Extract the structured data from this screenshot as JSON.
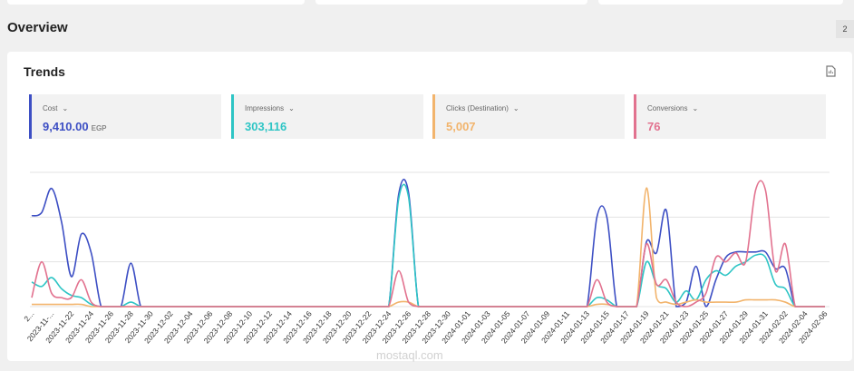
{
  "header": {
    "title": "Overview",
    "button": "2"
  },
  "panel": {
    "title": "Trends",
    "cards": [
      {
        "label": "Cost",
        "value": "9,410.00",
        "unit": "EGP",
        "color": "#3d4fc4"
      },
      {
        "label": "Impressions",
        "value": "303,116",
        "color": "#2ec5c5"
      },
      {
        "label": "Clicks (Destination)",
        "value": "5,007",
        "color": "#f2b46c"
      },
      {
        "label": "Conversions",
        "value": "76",
        "color": "#e2728f"
      }
    ]
  },
  "watermark": "mostaql.com",
  "chart_data": {
    "type": "line",
    "categories": [
      "2...",
      null,
      "2023-11-...",
      null,
      "2023-11-22",
      null,
      "2023-11-24",
      null,
      "2023-11-26",
      null,
      "2023-11-28",
      null,
      "2023-11-30",
      null,
      "2023-12-02",
      null,
      "2023-12-04",
      null,
      "2023-12-06",
      null,
      "2023-12-08",
      null,
      "2023-12-10",
      null,
      "2023-12-12",
      null,
      "2023-12-14",
      null,
      "2023-12-16",
      null,
      "2023-12-18",
      null,
      "2023-12-20",
      null,
      "2023-12-22",
      null,
      "2023-12-24",
      null,
      "2023-12-26",
      null,
      "2023-12-28",
      null,
      "2023-12-30",
      null,
      "2024-01-01",
      null,
      "2024-01-03",
      null,
      "2024-01-05",
      null,
      "2024-01-07",
      null,
      "2024-01-09",
      null,
      "2024-01-11",
      null,
      "2024-01-13",
      null,
      "2024-01-15",
      null,
      "2024-01-17",
      null,
      "2024-01-19",
      null,
      "2024-01-21",
      null,
      "2024-01-23",
      null,
      "2024-01-25",
      null,
      "2024-01-27",
      null,
      "2024-01-29",
      null,
      "2024-01-31",
      null,
      "2024-02-02",
      null,
      "2024-02-04",
      null,
      "2024-02-06"
    ],
    "series": [
      {
        "name": "Cost",
        "color": "#3d4fc4",
        "values": [
          2.03,
          2.1,
          2.64,
          1.9,
          0.67,
          1.62,
          1.2,
          0,
          0,
          0,
          0.97,
          0,
          0,
          0,
          0,
          0,
          0,
          0,
          0,
          0,
          0,
          0,
          0,
          0,
          0,
          0,
          0,
          0,
          0,
          0,
          0,
          0,
          0,
          0,
          0,
          0,
          0,
          2.5,
          2.55,
          0,
          0,
          0,
          0,
          0,
          0,
          0,
          0,
          0,
          0,
          0,
          0,
          0,
          0,
          0,
          0,
          0,
          0,
          2.0,
          2.0,
          0,
          0,
          0,
          1.45,
          1.2,
          2.15,
          0,
          0.1,
          0.9,
          0,
          0.6,
          1.1,
          1.22,
          1.22,
          1.22,
          1.22,
          0.85,
          0.85,
          0,
          0,
          0,
          0
        ]
      },
      {
        "name": "Impressions",
        "color": "#2ec5c5",
        "values": [
          0.55,
          0.45,
          0.65,
          0.4,
          0.25,
          0.2,
          0.05,
          0,
          0,
          0,
          0.1,
          0,
          0,
          0,
          0,
          0,
          0,
          0,
          0,
          0,
          0,
          0,
          0,
          0,
          0,
          0,
          0,
          0,
          0,
          0,
          0,
          0,
          0,
          0,
          0,
          0,
          0,
          2.4,
          2.45,
          0,
          0,
          0,
          0,
          0,
          0,
          0,
          0,
          0,
          0,
          0,
          0,
          0,
          0,
          0,
          0,
          0,
          0,
          0.2,
          0.15,
          0,
          0,
          0,
          1.0,
          0.5,
          0.4,
          0.1,
          0.35,
          0.15,
          0.6,
          0.8,
          0.7,
          0.9,
          1.0,
          1.15,
          1.1,
          0.5,
          0.4,
          0,
          0,
          0,
          0
        ]
      },
      {
        "name": "Clicks (Destination)",
        "color": "#f2b46c",
        "values": [
          0.05,
          0.05,
          0.05,
          0.05,
          0.05,
          0.05,
          0,
          0,
          0,
          0,
          0,
          0,
          0,
          0,
          0,
          0,
          0,
          0,
          0,
          0,
          0,
          0,
          0,
          0,
          0,
          0,
          0,
          0,
          0,
          0,
          0,
          0,
          0,
          0,
          0,
          0,
          0,
          0.1,
          0.1,
          0,
          0,
          0,
          0,
          0,
          0,
          0,
          0,
          0,
          0,
          0,
          0,
          0,
          0,
          0,
          0,
          0,
          0,
          0.05,
          0.05,
          0,
          0,
          0,
          2.65,
          0.2,
          0.1,
          0.05,
          0.1,
          0.15,
          0.1,
          0.1,
          0.1,
          0.1,
          0.15,
          0.15,
          0.15,
          0.15,
          0.1,
          0,
          0,
          0,
          0
        ]
      },
      {
        "name": "Conversions",
        "color": "#e2728f",
        "values": [
          0.2,
          1.0,
          0.3,
          0.2,
          0.2,
          0.6,
          0.1,
          0,
          0,
          0,
          0,
          0,
          0,
          0,
          0,
          0,
          0,
          0,
          0,
          0,
          0,
          0,
          0,
          0,
          0,
          0,
          0,
          0,
          0,
          0,
          0,
          0,
          0,
          0,
          0,
          0,
          0,
          0.8,
          0.1,
          0,
          0,
          0,
          0,
          0,
          0,
          0,
          0,
          0,
          0,
          0,
          0,
          0,
          0,
          0,
          0,
          0,
          0,
          0.6,
          0.1,
          0,
          0,
          0,
          1.4,
          0.5,
          0.6,
          0.1,
          0,
          0.1,
          0.3,
          1.1,
          1.0,
          1.2,
          1.0,
          2.6,
          2.6,
          0.8,
          1.4,
          0,
          0,
          0,
          0
        ]
      }
    ],
    "ylim": [
      0,
      3
    ],
    "yticks": [
      0,
      1,
      2,
      3
    ],
    "grid": true
  }
}
